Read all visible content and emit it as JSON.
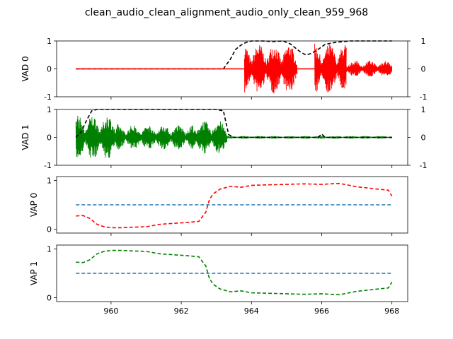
{
  "title": "clean_audio_clean_alignment_audio_only_clean_959_968",
  "chart_data": [
    {
      "type": "line",
      "panel": "vad0",
      "ylabel": "VAD 0",
      "xlim": [
        958.45,
        968.45
      ],
      "ylim": [
        -1,
        1
      ],
      "yticks": [
        -1,
        0,
        1
      ],
      "right_yticks": [
        -1,
        0,
        1
      ],
      "series": [
        {
          "name": "vad0_prob",
          "color": "#000000",
          "style": "dashed",
          "x": [
            959.0,
            959.5,
            960.0,
            961.0,
            962.0,
            963.0,
            963.2,
            963.4,
            963.55,
            963.7,
            963.85,
            964.0,
            964.3,
            964.6,
            964.9,
            965.1,
            965.25,
            965.4,
            965.55,
            965.7,
            965.9,
            966.1,
            966.4,
            966.8,
            967.2,
            967.6,
            968.0
          ],
          "y": [
            0.0,
            0.0,
            0.0,
            0.0,
            0.0,
            0.0,
            0.0,
            0.35,
            0.7,
            0.85,
            0.95,
            1.0,
            1.0,
            0.98,
            1.0,
            0.9,
            0.75,
            0.6,
            0.5,
            0.55,
            0.7,
            0.88,
            0.95,
            1.0,
            1.0,
            1.0,
            1.0
          ]
        },
        {
          "name": "vad0_label",
          "color": "#ff0000",
          "style": "solid",
          "x": [
            959.0,
            968.0
          ],
          "y": [
            0.0,
            0.0
          ]
        }
      ],
      "waveform": {
        "color": "#ff0000",
        "bursts": [
          [
            963.8,
            965.3,
            0.9
          ],
          [
            965.8,
            966.7,
            0.9
          ],
          [
            966.7,
            968.0,
            0.3
          ]
        ]
      }
    },
    {
      "type": "line",
      "panel": "vad1",
      "ylabel": "VAD 1",
      "xlim": [
        958.45,
        968.45
      ],
      "ylim": [
        -1,
        1
      ],
      "yticks": [
        -1,
        0,
        1
      ],
      "right_yticks": [
        -1,
        0,
        1
      ],
      "series": [
        {
          "name": "vad1_prob",
          "color": "#000000",
          "style": "dashed",
          "x": [
            959.0,
            959.15,
            959.3,
            959.45,
            959.6,
            960.0,
            961.0,
            962.0,
            963.0,
            963.2,
            963.35,
            963.5,
            965.9,
            966.0,
            966.1,
            968.0
          ],
          "y": [
            0.0,
            0.2,
            0.6,
            0.95,
            1.0,
            1.0,
            1.0,
            1.0,
            1.0,
            0.95,
            0.1,
            0.0,
            0.0,
            0.12,
            0.0,
            0.0
          ]
        }
      ],
      "waveform": {
        "color": "#008000",
        "bursts": [
          [
            959.0,
            960.2,
            0.8
          ],
          [
            960.2,
            962.3,
            0.45
          ],
          [
            962.3,
            963.3,
            0.6
          ],
          [
            963.3,
            968.0,
            0.02
          ]
        ]
      }
    },
    {
      "type": "line",
      "panel": "vap0",
      "ylabel": "VAP 0",
      "xlim": [
        958.45,
        968.45
      ],
      "ylim": [
        -0.08,
        1.08
      ],
      "yticks": [
        0,
        1
      ],
      "series": [
        {
          "name": "threshold",
          "color": "#1f77b4",
          "style": "dashed",
          "x": [
            959.0,
            968.0
          ],
          "y": [
            0.5,
            0.5
          ]
        },
        {
          "name": "vap0",
          "color": "#ff0000",
          "style": "dashed",
          "x": [
            959.0,
            959.2,
            959.4,
            959.6,
            959.8,
            960.0,
            960.3,
            960.6,
            961.0,
            961.4,
            961.8,
            962.2,
            962.5,
            962.7,
            962.8,
            962.9,
            963.1,
            963.4,
            963.7,
            964.0,
            964.5,
            965.0,
            965.5,
            966.0,
            966.5,
            967.0,
            967.5,
            967.9,
            968.0
          ],
          "y": [
            0.27,
            0.28,
            0.22,
            0.1,
            0.05,
            0.03,
            0.03,
            0.04,
            0.05,
            0.1,
            0.12,
            0.14,
            0.16,
            0.35,
            0.6,
            0.72,
            0.82,
            0.88,
            0.86,
            0.9,
            0.91,
            0.92,
            0.93,
            0.92,
            0.94,
            0.87,
            0.83,
            0.8,
            0.68
          ]
        }
      ]
    },
    {
      "type": "line",
      "panel": "vap1",
      "ylabel": "VAP 1",
      "xlabel": "",
      "xlim": [
        958.45,
        968.45
      ],
      "ylim": [
        -0.08,
        1.08
      ],
      "yticks": [
        0,
        1
      ],
      "xticks": [
        960,
        962,
        964,
        966,
        968
      ],
      "xticklabels": [
        "960",
        "962",
        "964",
        "966",
        "968"
      ],
      "series": [
        {
          "name": "threshold",
          "color": "#1f77b4",
          "style": "dashed",
          "x": [
            959.0,
            968.0
          ],
          "y": [
            0.5,
            0.5
          ]
        },
        {
          "name": "vap1",
          "color": "#008000",
          "style": "dashed",
          "x": [
            959.0,
            959.2,
            959.4,
            959.6,
            959.8,
            960.0,
            960.3,
            960.6,
            961.0,
            961.4,
            961.8,
            962.2,
            962.5,
            962.7,
            962.8,
            962.9,
            963.1,
            963.4,
            963.7,
            964.0,
            964.5,
            965.0,
            965.5,
            966.0,
            966.5,
            967.0,
            967.5,
            967.9,
            968.0
          ],
          "y": [
            0.73,
            0.72,
            0.78,
            0.9,
            0.95,
            0.97,
            0.97,
            0.96,
            0.95,
            0.9,
            0.88,
            0.86,
            0.84,
            0.65,
            0.4,
            0.28,
            0.18,
            0.12,
            0.14,
            0.1,
            0.09,
            0.08,
            0.07,
            0.08,
            0.06,
            0.13,
            0.17,
            0.2,
            0.32
          ]
        }
      ]
    }
  ]
}
